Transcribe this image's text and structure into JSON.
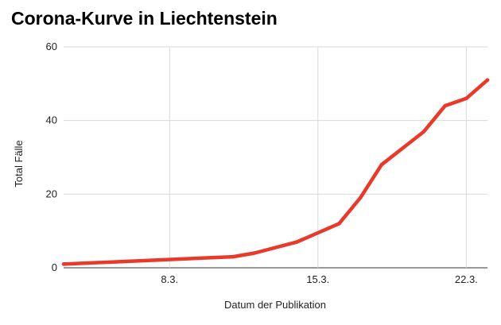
{
  "chart_data": {
    "type": "line",
    "title": "Corona-Kurve in Liechtenstein",
    "xlabel": "Datum der Publikation",
    "ylabel": "Total Fälle",
    "ylim": [
      0,
      60
    ],
    "xlim_day": [
      3,
      23
    ],
    "yticks": [
      0,
      20,
      40,
      60
    ],
    "xticks": [
      {
        "day": 8,
        "label": "8.3."
      },
      {
        "day": 15,
        "label": "15.3."
      },
      {
        "day": 22,
        "label": "22.3."
      }
    ],
    "grid": true,
    "series": [
      {
        "color": "#e8392b",
        "points": [
          {
            "day": 3,
            "y": 1
          },
          {
            "day": 11,
            "y": 3
          },
          {
            "day": 12,
            "y": 4
          },
          {
            "day": 14,
            "y": 7
          },
          {
            "day": 16,
            "y": 12
          },
          {
            "day": 17,
            "y": 19
          },
          {
            "day": 18,
            "y": 28
          },
          {
            "day": 20,
            "y": 37
          },
          {
            "day": 21,
            "y": 44
          },
          {
            "day": 22,
            "y": 46
          },
          {
            "day": 23,
            "y": 51
          }
        ]
      }
    ]
  }
}
